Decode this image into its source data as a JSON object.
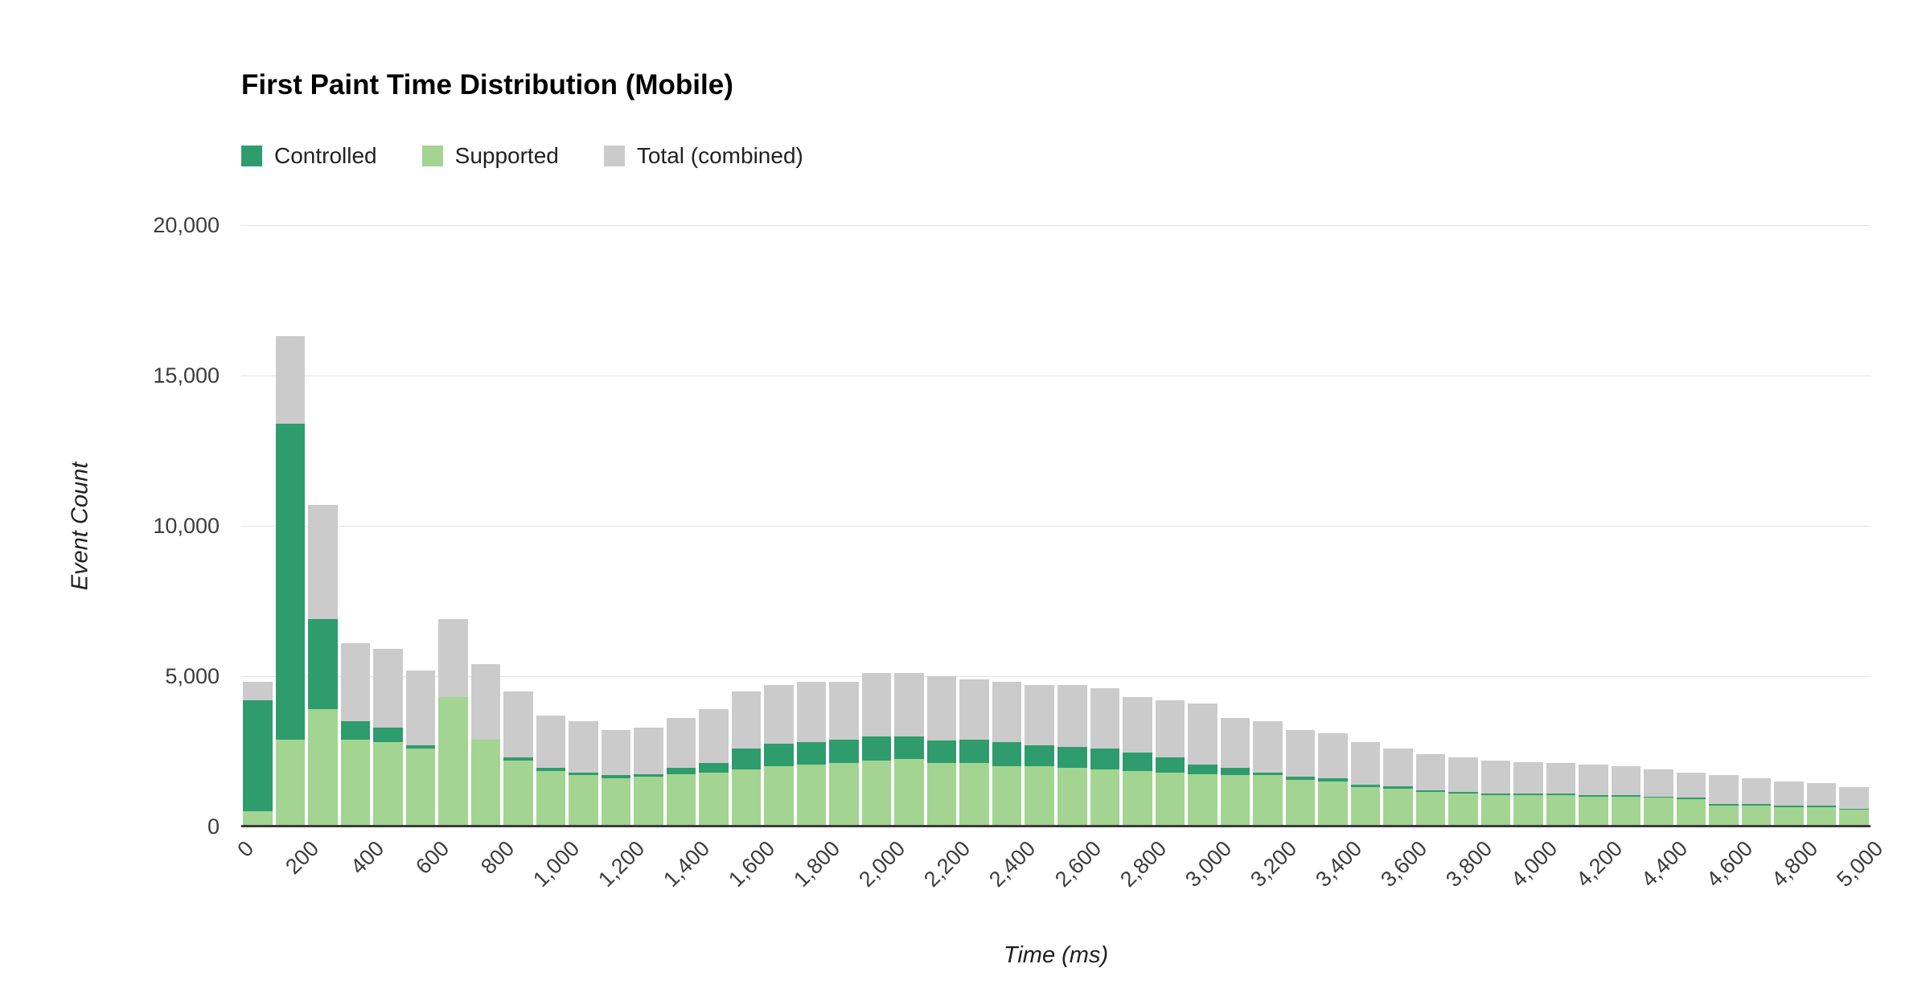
{
  "title": "First Paint Time Distribution (Mobile)",
  "legend": [
    {
      "label": "Controlled",
      "color": "#2f9c6e"
    },
    {
      "label": "Supported",
      "color": "#a3d492"
    },
    {
      "label": "Total (combined)",
      "color": "#cbcbcb"
    }
  ],
  "chart_data": {
    "type": "bar",
    "subtype": "overlaid-histogram",
    "title": "First Paint Time Distribution (Mobile)",
    "xlabel": "Time (ms)",
    "ylabel": "Event Count",
    "xlim": [
      0,
      5000
    ],
    "ylim": [
      0,
      20000
    ],
    "bin_width_ms": 100,
    "grid": true,
    "legend_position": "top-left",
    "yticks": [
      0,
      5000,
      10000,
      15000,
      20000
    ],
    "ytick_labels": [
      "0",
      "5,000",
      "10,000",
      "15,000",
      "20,000"
    ],
    "xticks": [
      0,
      200,
      400,
      600,
      800,
      1000,
      1200,
      1400,
      1600,
      1800,
      2000,
      2200,
      2400,
      2600,
      2800,
      3000,
      3200,
      3400,
      3600,
      3800,
      4000,
      4200,
      4400,
      4600,
      4800,
      5000
    ],
    "xtick_labels": [
      "0",
      "200",
      "400",
      "600",
      "800",
      "1,000",
      "1,200",
      "1,400",
      "1,600",
      "1,800",
      "2,000",
      "2,200",
      "2,400",
      "2,600",
      "2,800",
      "3,000",
      "3,200",
      "3,400",
      "3,600",
      "3,800",
      "4,000",
      "4,200",
      "4,400",
      "4,600",
      "4,800",
      "5,000"
    ],
    "bins_start": [
      0,
      100,
      200,
      300,
      400,
      500,
      600,
      700,
      800,
      900,
      1000,
      1100,
      1200,
      1300,
      1400,
      1500,
      1600,
      1700,
      1800,
      1900,
      2000,
      2100,
      2200,
      2300,
      2400,
      2500,
      2600,
      2700,
      2800,
      2900,
      3000,
      3100,
      3200,
      3300,
      3400,
      3500,
      3600,
      3700,
      3800,
      3900,
      4000,
      4100,
      4200,
      4300,
      4400,
      4500,
      4600,
      4700,
      4800,
      4900
    ],
    "series": [
      {
        "name": "Total (combined)",
        "color": "#cbcbcb",
        "values": [
          4800,
          16300,
          10700,
          6100,
          5900,
          5200,
          6900,
          5400,
          4500,
          3700,
          3500,
          3200,
          3300,
          3600,
          3900,
          4500,
          4700,
          4800,
          4800,
          5100,
          5100,
          5000,
          4900,
          4800,
          4700,
          4700,
          4600,
          4300,
          4200,
          4100,
          3600,
          3500,
          3200,
          3100,
          2800,
          2600,
          2400,
          2300,
          2200,
          2150,
          2100,
          2050,
          2000,
          1900,
          1800,
          1700,
          1600,
          1500,
          1450,
          1300
        ]
      },
      {
        "name": "Controlled",
        "color": "#2f9c6e",
        "values": [
          4200,
          13400,
          6900,
          3500,
          3300,
          2700,
          2800,
          2900,
          2300,
          1950,
          1800,
          1700,
          1750,
          1950,
          2100,
          2600,
          2750,
          2800,
          2900,
          3000,
          3000,
          2850,
          2900,
          2800,
          2700,
          2650,
          2600,
          2450,
          2300,
          2050,
          1950,
          1800,
          1650,
          1600,
          1400,
          1350,
          1200,
          1150,
          1100,
          1100,
          1100,
          1050,
          1050,
          1000,
          950,
          750,
          750,
          700,
          700,
          600
        ]
      },
      {
        "name": "Supported",
        "color": "#a3d492",
        "values": [
          500,
          2900,
          3900,
          2900,
          2800,
          2600,
          4300,
          2900,
          2200,
          1850,
          1700,
          1600,
          1650,
          1750,
          1800,
          1900,
          2000,
          2050,
          2100,
          2200,
          2250,
          2100,
          2100,
          2000,
          2000,
          1950,
          1900,
          1850,
          1800,
          1750,
          1700,
          1700,
          1550,
          1500,
          1300,
          1250,
          1150,
          1100,
          1050,
          1050,
          1050,
          1000,
          1000,
          950,
          900,
          700,
          700,
          650,
          650,
          550
        ]
      }
    ]
  }
}
